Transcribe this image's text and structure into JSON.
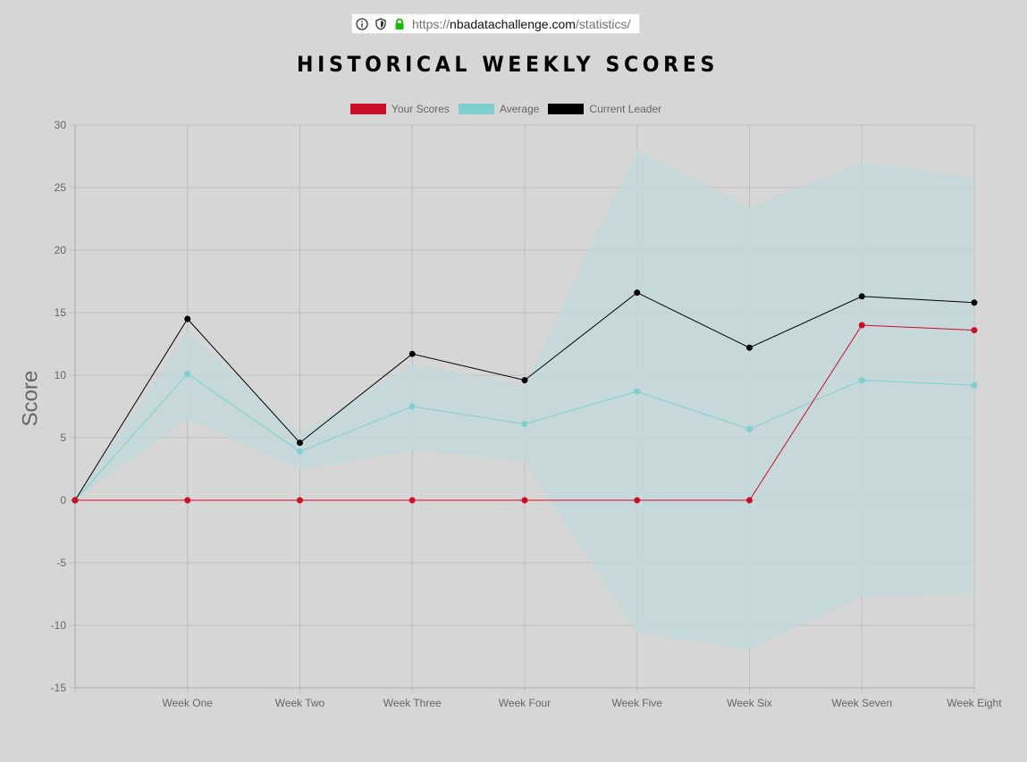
{
  "browser": {
    "url_prefix": "https://",
    "url_host": "nbadatachallenge.com",
    "url_path": "/statistics/"
  },
  "page": {
    "title": "HISTORICAL WEEKLY SCORES"
  },
  "colors": {
    "your_scores": "#cc0f2a",
    "average": "#7fcfd1",
    "current_leader": "#000000",
    "band_fill": "#c3d8d9",
    "grid": "#bdbdbd",
    "tick_text": "#666666"
  },
  "chart_data": {
    "type": "line",
    "title": "",
    "ylabel": "Score",
    "xlabel": "",
    "categories": [
      "",
      "Week One",
      "Week Two",
      "Week Three",
      "Week Four",
      "Week Five",
      "Week Six",
      "Week Seven",
      "Week Eight"
    ],
    "ylim": [
      -15,
      30
    ],
    "yticks": [
      30,
      25,
      20,
      15,
      10,
      5,
      0,
      -5,
      -10,
      -15
    ],
    "grid": true,
    "legend_position": "top",
    "series": [
      {
        "name": "Your Scores",
        "values": [
          0,
          0,
          0,
          0,
          0,
          0,
          0,
          14,
          13.6
        ]
      },
      {
        "name": "Average",
        "values": [
          0,
          10.1,
          3.9,
          7.5,
          6.1,
          8.7,
          5.7,
          9.6,
          9.2
        ]
      },
      {
        "name": "Current Leader",
        "values": [
          0,
          14.5,
          4.6,
          11.7,
          9.6,
          16.6,
          12.2,
          16.3,
          15.8
        ]
      }
    ],
    "band": {
      "upper": [
        0,
        13.5,
        5.3,
        10.9,
        9.2,
        28,
        23.4,
        27,
        25.8
      ],
      "lower": [
        0,
        6.5,
        2.4,
        4.0,
        3.1,
        -10.6,
        -11.9,
        -7.7,
        -7.5
      ]
    }
  }
}
